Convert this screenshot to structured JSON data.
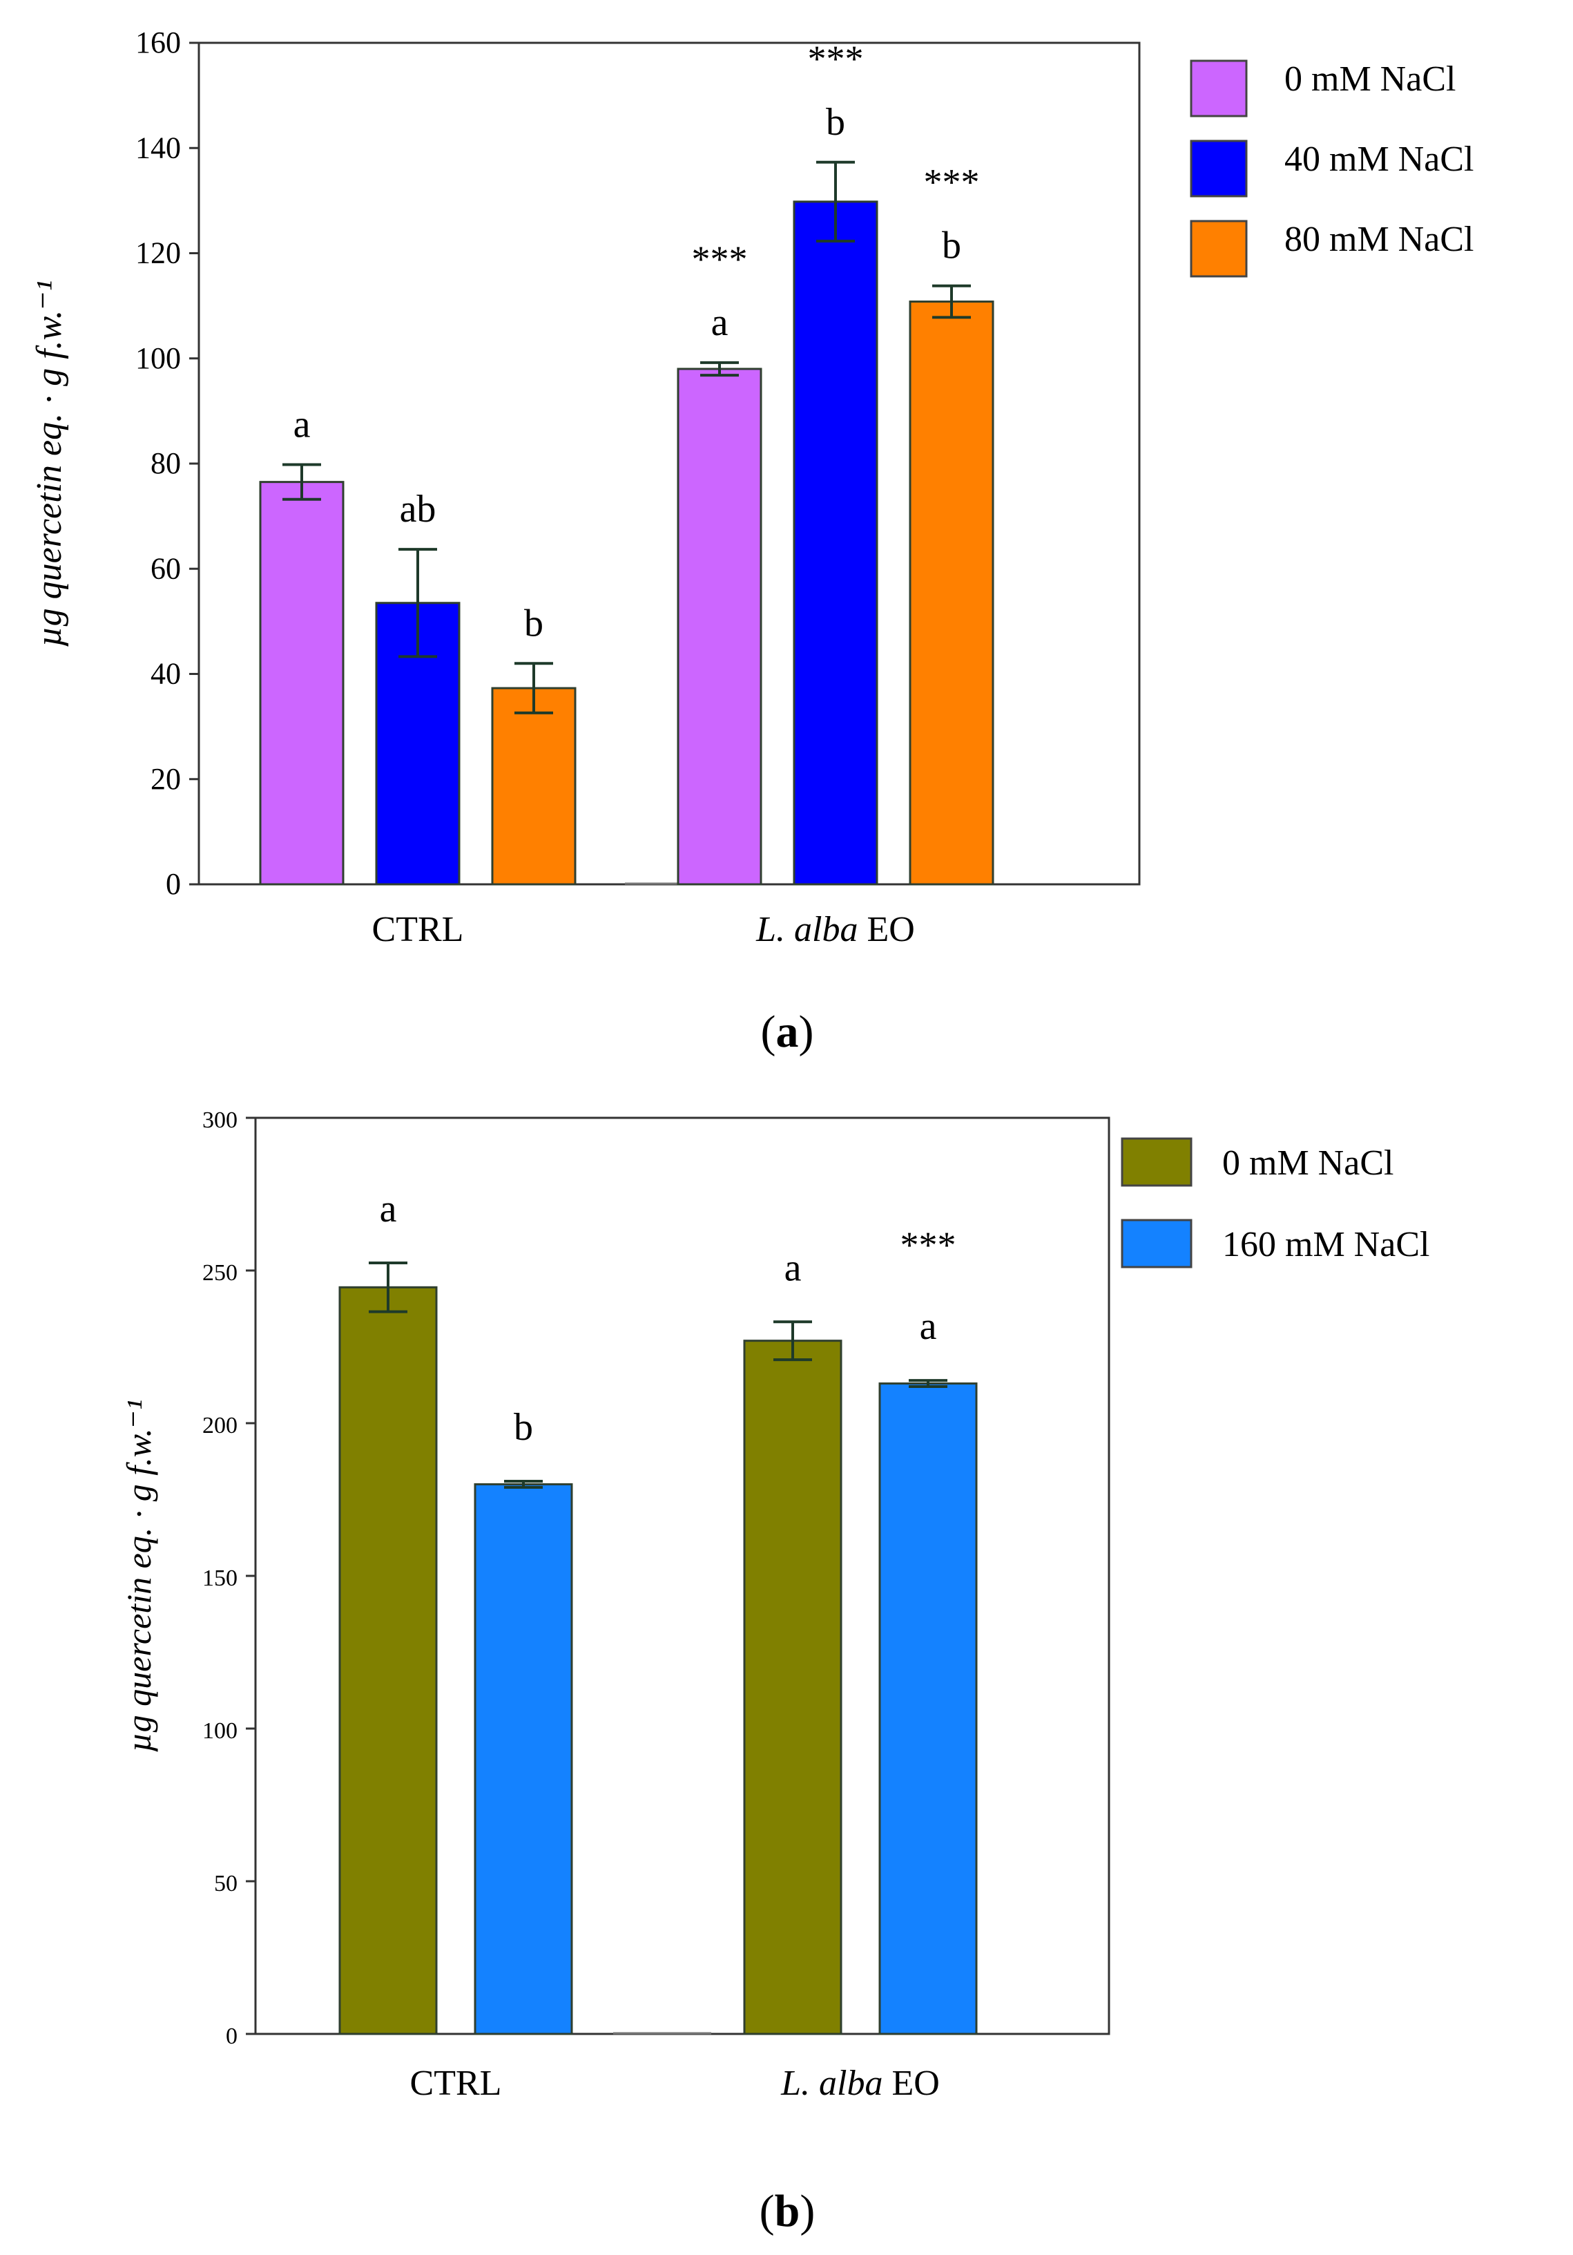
{
  "chart_data": [
    {
      "type": "bar",
      "panel_label": "(a)",
      "panel_prefix": "(",
      "panel_letter": "a",
      "panel_suffix": ")",
      "ylabel": "µg quercetin eq. · g f.w.⁻¹",
      "ylim": [
        0,
        160
      ],
      "yticks": [
        "0",
        "20",
        "40",
        "60",
        "80",
        "100",
        "120",
        "140",
        "160"
      ],
      "yticks_values": [
        0,
        20,
        40,
        60,
        80,
        100,
        120,
        140,
        160
      ],
      "categories": [
        "CTRL",
        "L. alba EO"
      ],
      "category_parts": [
        {
          "italic": "",
          "plain": "CTRL"
        },
        {
          "italic": "L. alba",
          "plain": " EO"
        }
      ],
      "series": [
        {
          "name": "0 mM NaCl",
          "color": "#cc66ff",
          "values": [
            76.5,
            98
          ],
          "errors": [
            3.3,
            1.2
          ],
          "letters": [
            "a",
            "a"
          ],
          "stars": [
            "",
            "***"
          ]
        },
        {
          "name": "40 mM NaCl",
          "color": "#0000ff",
          "values": [
            53.5,
            129.8
          ],
          "errors": [
            10.2,
            7.5
          ],
          "letters": [
            "ab",
            "b"
          ],
          "stars": [
            "",
            "***"
          ]
        },
        {
          "name": "80 mM NaCl",
          "color": "#ff8000",
          "values": [
            37.3,
            110.8
          ],
          "errors": [
            4.7,
            3
          ],
          "letters": [
            "b",
            "b"
          ],
          "stars": [
            "",
            "***"
          ]
        }
      ]
    },
    {
      "type": "bar",
      "panel_label": "(b)",
      "panel_prefix": "(",
      "panel_letter": "b",
      "panel_suffix": ")",
      "ylabel": "µg quercetin eq. · g f.w.⁻¹",
      "ylim": [
        0,
        300
      ],
      "yticks": [
        "0",
        "50",
        "100",
        "150",
        "200",
        "250",
        "300"
      ],
      "yticks_values": [
        0,
        50,
        100,
        150,
        200,
        250,
        300
      ],
      "categories": [
        "CTRL",
        "L. alba EO"
      ],
      "category_parts": [
        {
          "italic": "",
          "plain": "CTRL"
        },
        {
          "italic": "L. alba",
          "plain": " EO"
        }
      ],
      "series": [
        {
          "name": "0 mM NaCl",
          "color": "#808000",
          "values": [
            244.5,
            227
          ],
          "errors": [
            8,
            6.2
          ],
          "letters": [
            "a",
            "a"
          ],
          "stars": [
            "",
            ""
          ]
        },
        {
          "name": "160 mM NaCl",
          "color": "#1482ff",
          "values": [
            180,
            213
          ],
          "errors": [
            1,
            1
          ],
          "letters": [
            "b",
            "a"
          ],
          "stars": [
            "",
            "***"
          ]
        }
      ]
    }
  ]
}
